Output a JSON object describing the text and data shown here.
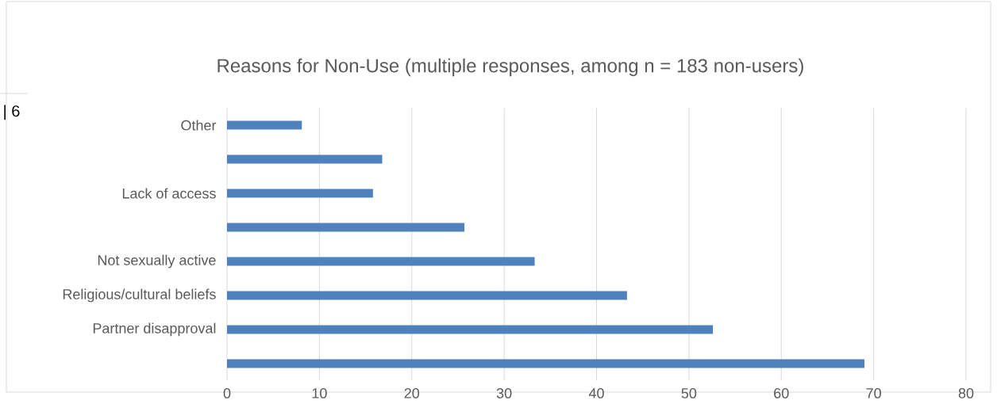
{
  "chart_data": {
    "type": "bar",
    "orientation": "horizontal",
    "title": "Reasons for Non-Use (multiple responses, among n = 183 non-users)",
    "categories": [
      "Other",
      null,
      "Lack of access",
      null,
      "Not sexually active",
      "Religious/cultural beliefs",
      "Partner disapproval",
      null
    ],
    "values": [
      8.1,
      16.8,
      15.8,
      25.7,
      33.3,
      43.3,
      52.6,
      69.0
    ],
    "color": "#4f81bd",
    "xlim": [
      0,
      80
    ],
    "xticks": [
      0,
      10,
      20,
      30,
      40,
      50,
      60,
      70,
      80
    ],
    "grid": "x",
    "annotations": [
      "| 6"
    ]
  }
}
